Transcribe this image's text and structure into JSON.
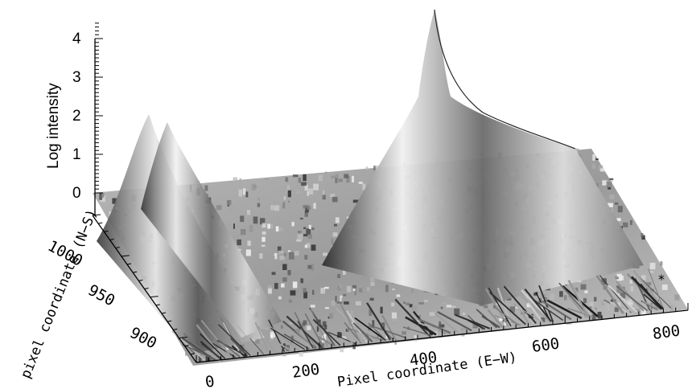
{
  "chart_data": {
    "type": "surface",
    "xlabel": "Pixel coordinate (E−W)",
    "ylabel": "pixel coordinate (N−S)",
    "zlabel": "Log intensity",
    "x_ticks": [
      "0",
      "200",
      "400",
      "600",
      "800"
    ],
    "y_ticks": [
      "900",
      "950",
      "1000"
    ],
    "z_ticks": [
      "0",
      "1",
      "2",
      "3",
      "4"
    ],
    "xlim": [
      0,
      850
    ],
    "ylim": [
      860,
      1040
    ],
    "zlim": [
      0,
      4.5
    ],
    "peaks": [
      {
        "x": 50,
        "y": 1005,
        "z": 2.0
      },
      {
        "x": 90,
        "y": 1010,
        "z": 1.9
      },
      {
        "x": 420,
        "y": 1020,
        "z": 4.5
      }
    ],
    "background_level": 0.0,
    "annotations": [
      "*"
    ]
  }
}
